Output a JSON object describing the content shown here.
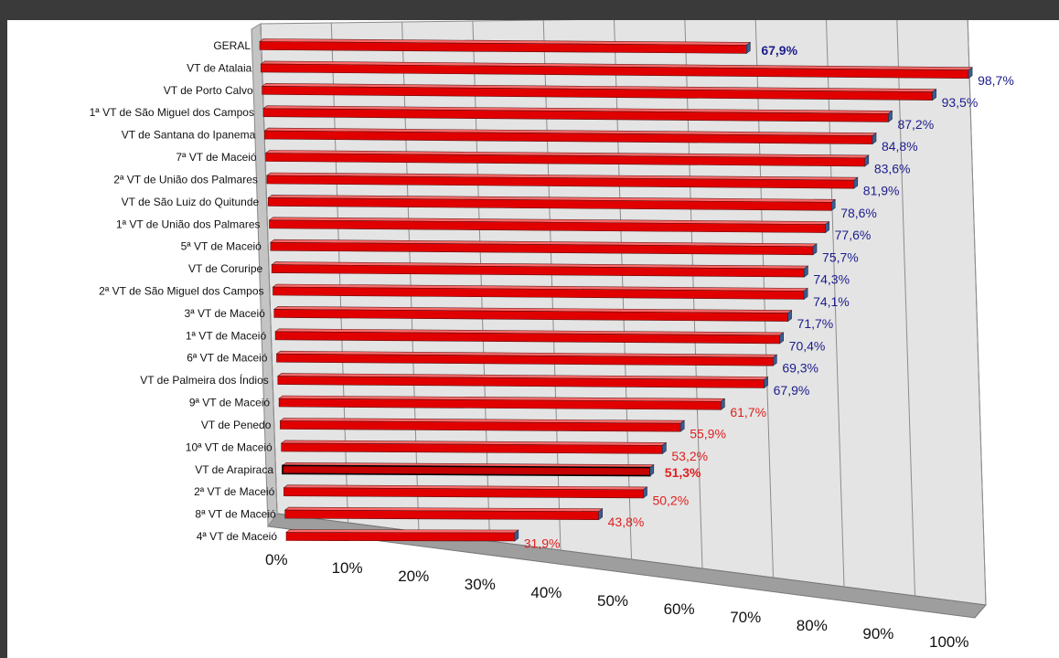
{
  "chart_data": {
    "type": "bar",
    "orientation": "horizontal",
    "style": "3d",
    "categories": [
      "GERAL",
      "VT de Atalaia",
      "VT de Porto Calvo",
      "1ª VT de São Miguel dos Campos",
      "VT de Santana do Ipanema",
      "7ª VT de Maceió",
      "2ª VT de União dos Palmares",
      "VT de São Luiz do Quitunde",
      "1ª VT de União dos Palmares",
      "5ª VT de Maceió",
      "VT de Coruripe",
      "2ª VT de São Miguel dos Campos",
      "3ª VT de Maceió",
      "1ª VT de Maceió",
      "6ª VT de Maceió",
      "VT de Palmeira dos Índios",
      "9ª VT de Maceió",
      "VT de Penedo",
      "10ª VT de Maceió",
      "VT de Arapiraca",
      "2ª VT de Maceió",
      "8ª VT de Maceió",
      "4ª VT de Maceió"
    ],
    "values": [
      67.9,
      98.7,
      93.5,
      87.2,
      84.8,
      83.6,
      81.9,
      78.6,
      77.6,
      75.7,
      74.3,
      74.1,
      71.7,
      70.4,
      69.3,
      67.9,
      61.7,
      55.9,
      53.2,
      51.3,
      50.2,
      43.8,
      31.9
    ],
    "value_labels": [
      "67,9%",
      "98,7%",
      "93,5%",
      "87,2%",
      "84,8%",
      "83,6%",
      "81,9%",
      "78,6%",
      "77,6%",
      "75,7%",
      "74,3%",
      "74,1%",
      "71,7%",
      "70,4%",
      "69,3%",
      "67,9%",
      "61,7%",
      "55,9%",
      "53,2%",
      "51,3%",
      "50,2%",
      "43,8%",
      "31,9%"
    ],
    "label_colors": [
      "#1c1c8c",
      "#1c1c8c",
      "#1c1c8c",
      "#1c1c8c",
      "#1c1c8c",
      "#1c1c8c",
      "#1c1c8c",
      "#1c1c8c",
      "#1c1c8c",
      "#1c1c8c",
      "#1c1c8c",
      "#1c1c8c",
      "#1c1c8c",
      "#1c1c8c",
      "#1c1c8c",
      "#1c1c8c",
      "#e02020",
      "#e02020",
      "#e02020",
      "#e02020",
      "#e02020",
      "#e02020",
      "#e02020"
    ],
    "highlighted": [
      "GERAL",
      "VT de Arapiraca"
    ],
    "x_ticks": [
      "0%",
      "10%",
      "20%",
      "30%",
      "40%",
      "50%",
      "60%",
      "70%",
      "80%",
      "90%",
      "100%"
    ],
    "xlim": [
      0,
      100
    ],
    "grid": true,
    "colors": {
      "bar": "#e00000",
      "bar_highlight": "#c00000",
      "above_reference": "#1c1c8c",
      "below_reference": "#e02020"
    }
  }
}
